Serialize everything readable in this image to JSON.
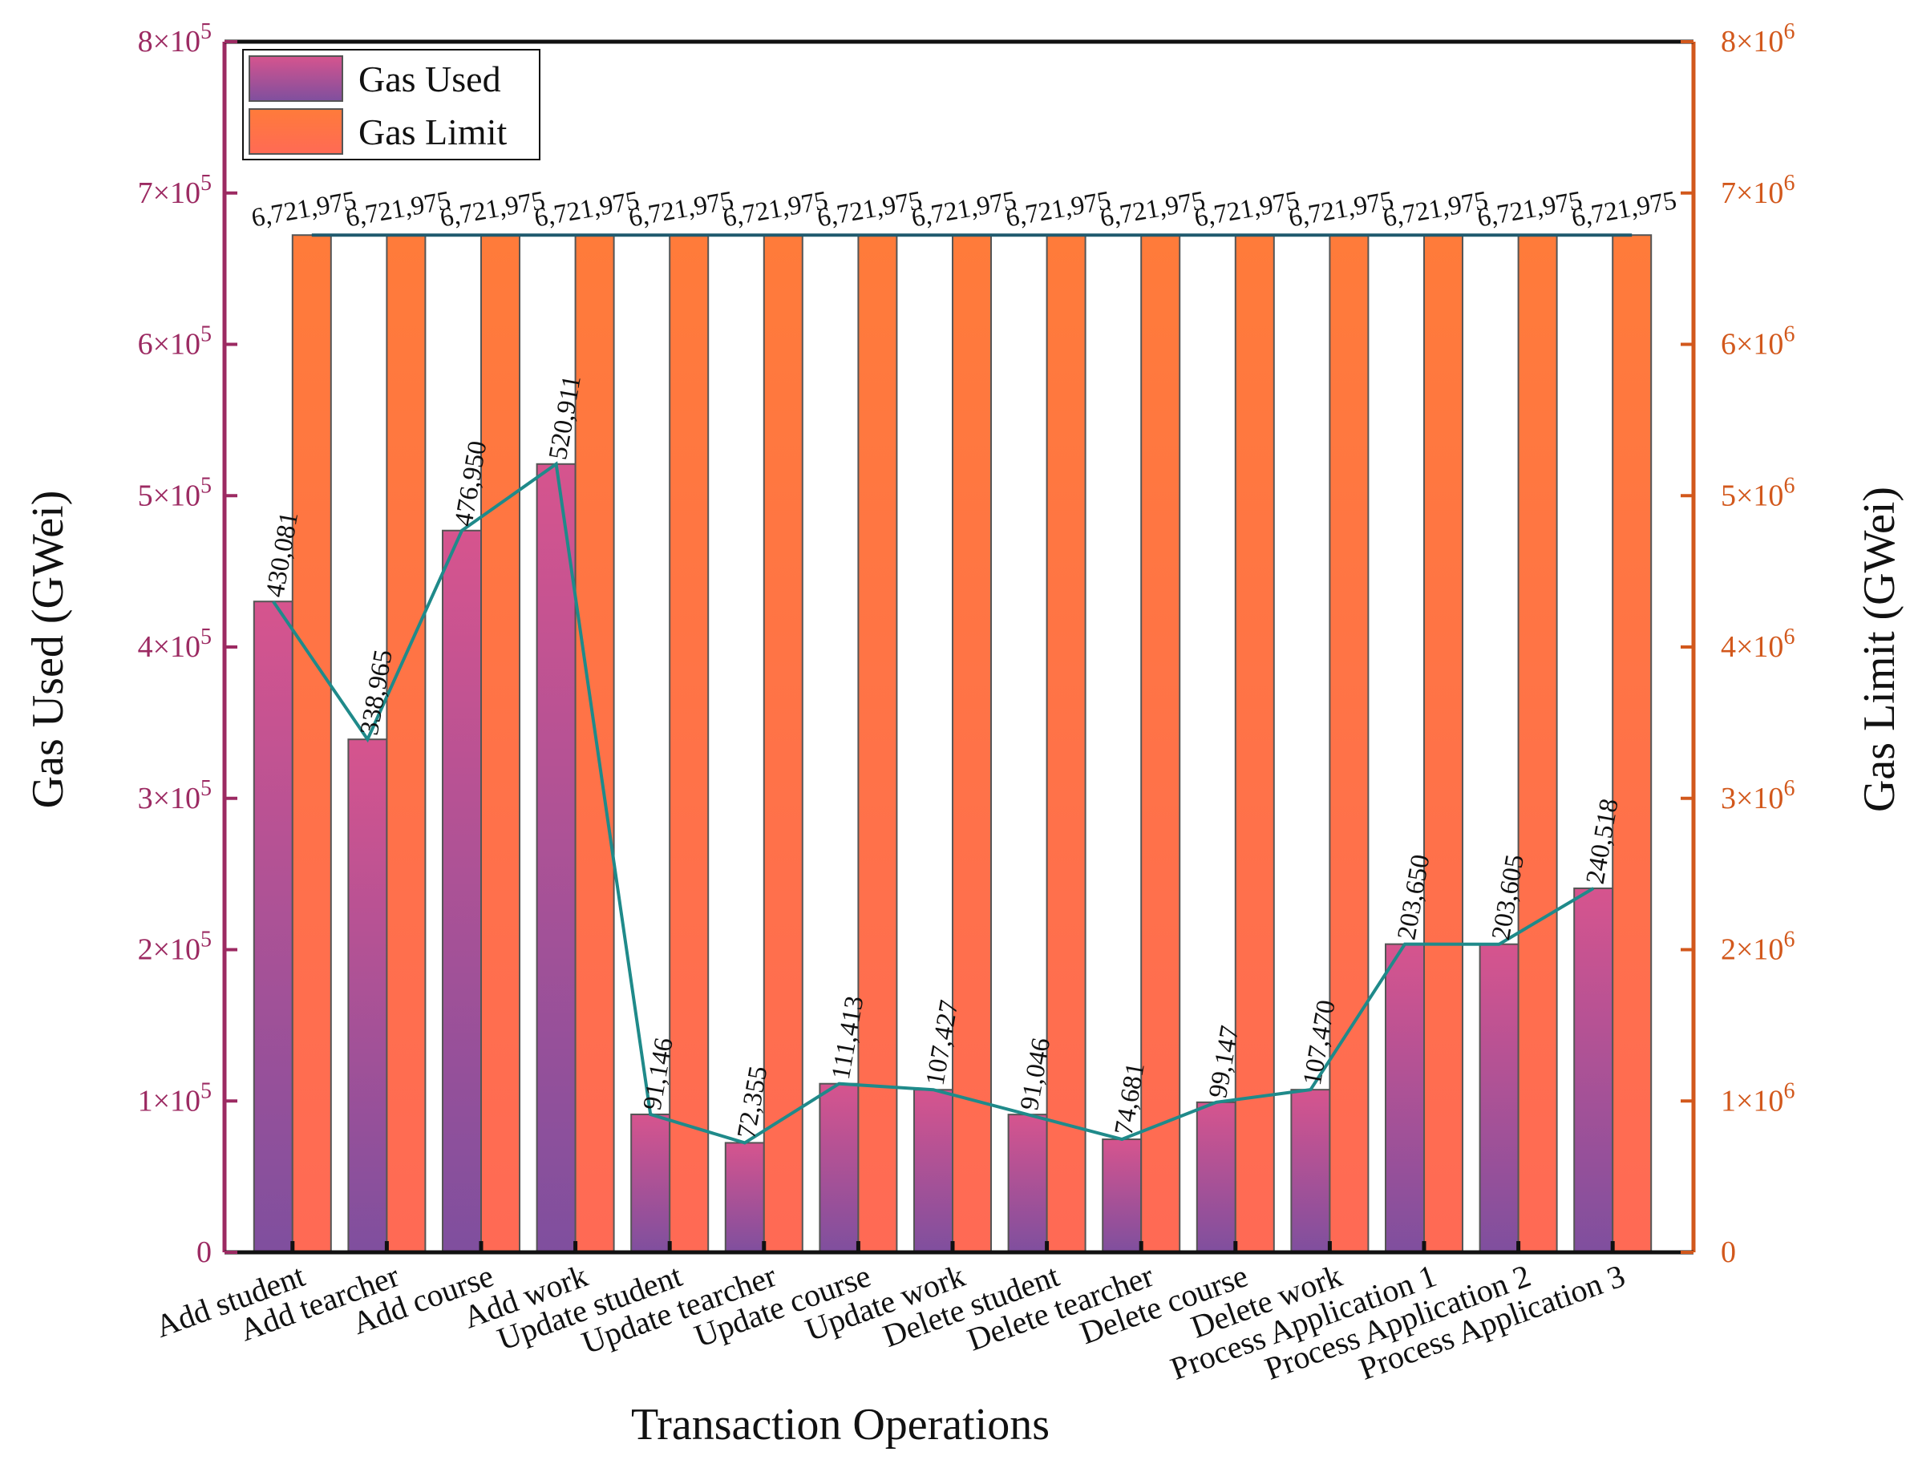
{
  "chart_data": {
    "type": "bar",
    "title": "",
    "xlabel": "Transaction Operations",
    "ylabel_left": "Gas Used (GWei)",
    "ylabel_right": "Gas Limit (GWei)",
    "categories": [
      "Add student",
      "Add tearcher",
      "Add course",
      "Add work",
      "Update student",
      "Update tearcher",
      "Update course",
      "Update work",
      "Delete student",
      "Delete tearcher",
      "Delete course",
      "Delete work",
      "Process Application 1",
      "Process Application 2",
      "Process Application 3"
    ],
    "series": [
      {
        "name": "Gas Used",
        "axis": "left",
        "values": [
          430081,
          338965,
          476950,
          520911,
          91146,
          72355,
          111413,
          107427,
          91046,
          74681,
          99147,
          107470,
          203650,
          203605,
          240518
        ],
        "labels": [
          "430,081",
          "338,965",
          "476,950",
          "520,911",
          "91,146",
          "72,355",
          "111,413",
          "107,427",
          "91,046",
          "74,681",
          "99,147",
          "107,470",
          "203,650",
          "203,605",
          "240,518"
        ],
        "color_top": "#d6548e",
        "color_bottom": "#7f4f9e"
      },
      {
        "name": "Gas Limit",
        "axis": "right",
        "values": [
          6721975,
          6721975,
          6721975,
          6721975,
          6721975,
          6721975,
          6721975,
          6721975,
          6721975,
          6721975,
          6721975,
          6721975,
          6721975,
          6721975,
          6721975
        ],
        "labels": [
          "6,721,975",
          "6,721,975",
          "6,721,975",
          "6,721,975",
          "6,721,975",
          "6,721,975",
          "6,721,975",
          "6,721,975",
          "6,721,975",
          "6,721,975",
          "6,721,975",
          "6,721,975",
          "6,721,975",
          "6,721,975",
          "6,721,975"
        ],
        "color_top": "#ff7b3a",
        "color_bottom": "#ff6a55"
      }
    ],
    "ylim_left": [
      0,
      800000
    ],
    "ylim_right": [
      0,
      8000000
    ],
    "yticks_left": [
      {
        "value": 0,
        "mantissa": "0",
        "exp": ""
      },
      {
        "value": 100000,
        "mantissa": "1×10",
        "exp": "5"
      },
      {
        "value": 200000,
        "mantissa": "2×10",
        "exp": "5"
      },
      {
        "value": 300000,
        "mantissa": "3×10",
        "exp": "5"
      },
      {
        "value": 400000,
        "mantissa": "4×10",
        "exp": "5"
      },
      {
        "value": 500000,
        "mantissa": "5×10",
        "exp": "5"
      },
      {
        "value": 600000,
        "mantissa": "6×10",
        "exp": "5"
      },
      {
        "value": 700000,
        "mantissa": "7×10",
        "exp": "5"
      },
      {
        "value": 800000,
        "mantissa": "8×10",
        "exp": "5"
      }
    ],
    "yticks_right": [
      {
        "value": 0,
        "mantissa": "0",
        "exp": ""
      },
      {
        "value": 1000000,
        "mantissa": "1×10",
        "exp": "6"
      },
      {
        "value": 2000000,
        "mantissa": "2×10",
        "exp": "6"
      },
      {
        "value": 3000000,
        "mantissa": "3×10",
        "exp": "6"
      },
      {
        "value": 4000000,
        "mantissa": "4×10",
        "exp": "6"
      },
      {
        "value": 5000000,
        "mantissa": "5×10",
        "exp": "6"
      },
      {
        "value": 6000000,
        "mantissa": "6×10",
        "exp": "6"
      },
      {
        "value": 7000000,
        "mantissa": "7×10",
        "exp": "6"
      },
      {
        "value": 8000000,
        "mantissa": "8×10",
        "exp": "6"
      }
    ],
    "legend": {
      "placement": "top-left",
      "entries": [
        "Gas Used",
        "Gas Limit"
      ]
    },
    "trend_lines": true,
    "colors": {
      "left_axis": "#9c2a62",
      "right_axis": "#d2581c",
      "trend_line_used": "#1f8a8a",
      "trend_line_limit": "#1f5a6e",
      "bar_edge": "#555555"
    }
  }
}
